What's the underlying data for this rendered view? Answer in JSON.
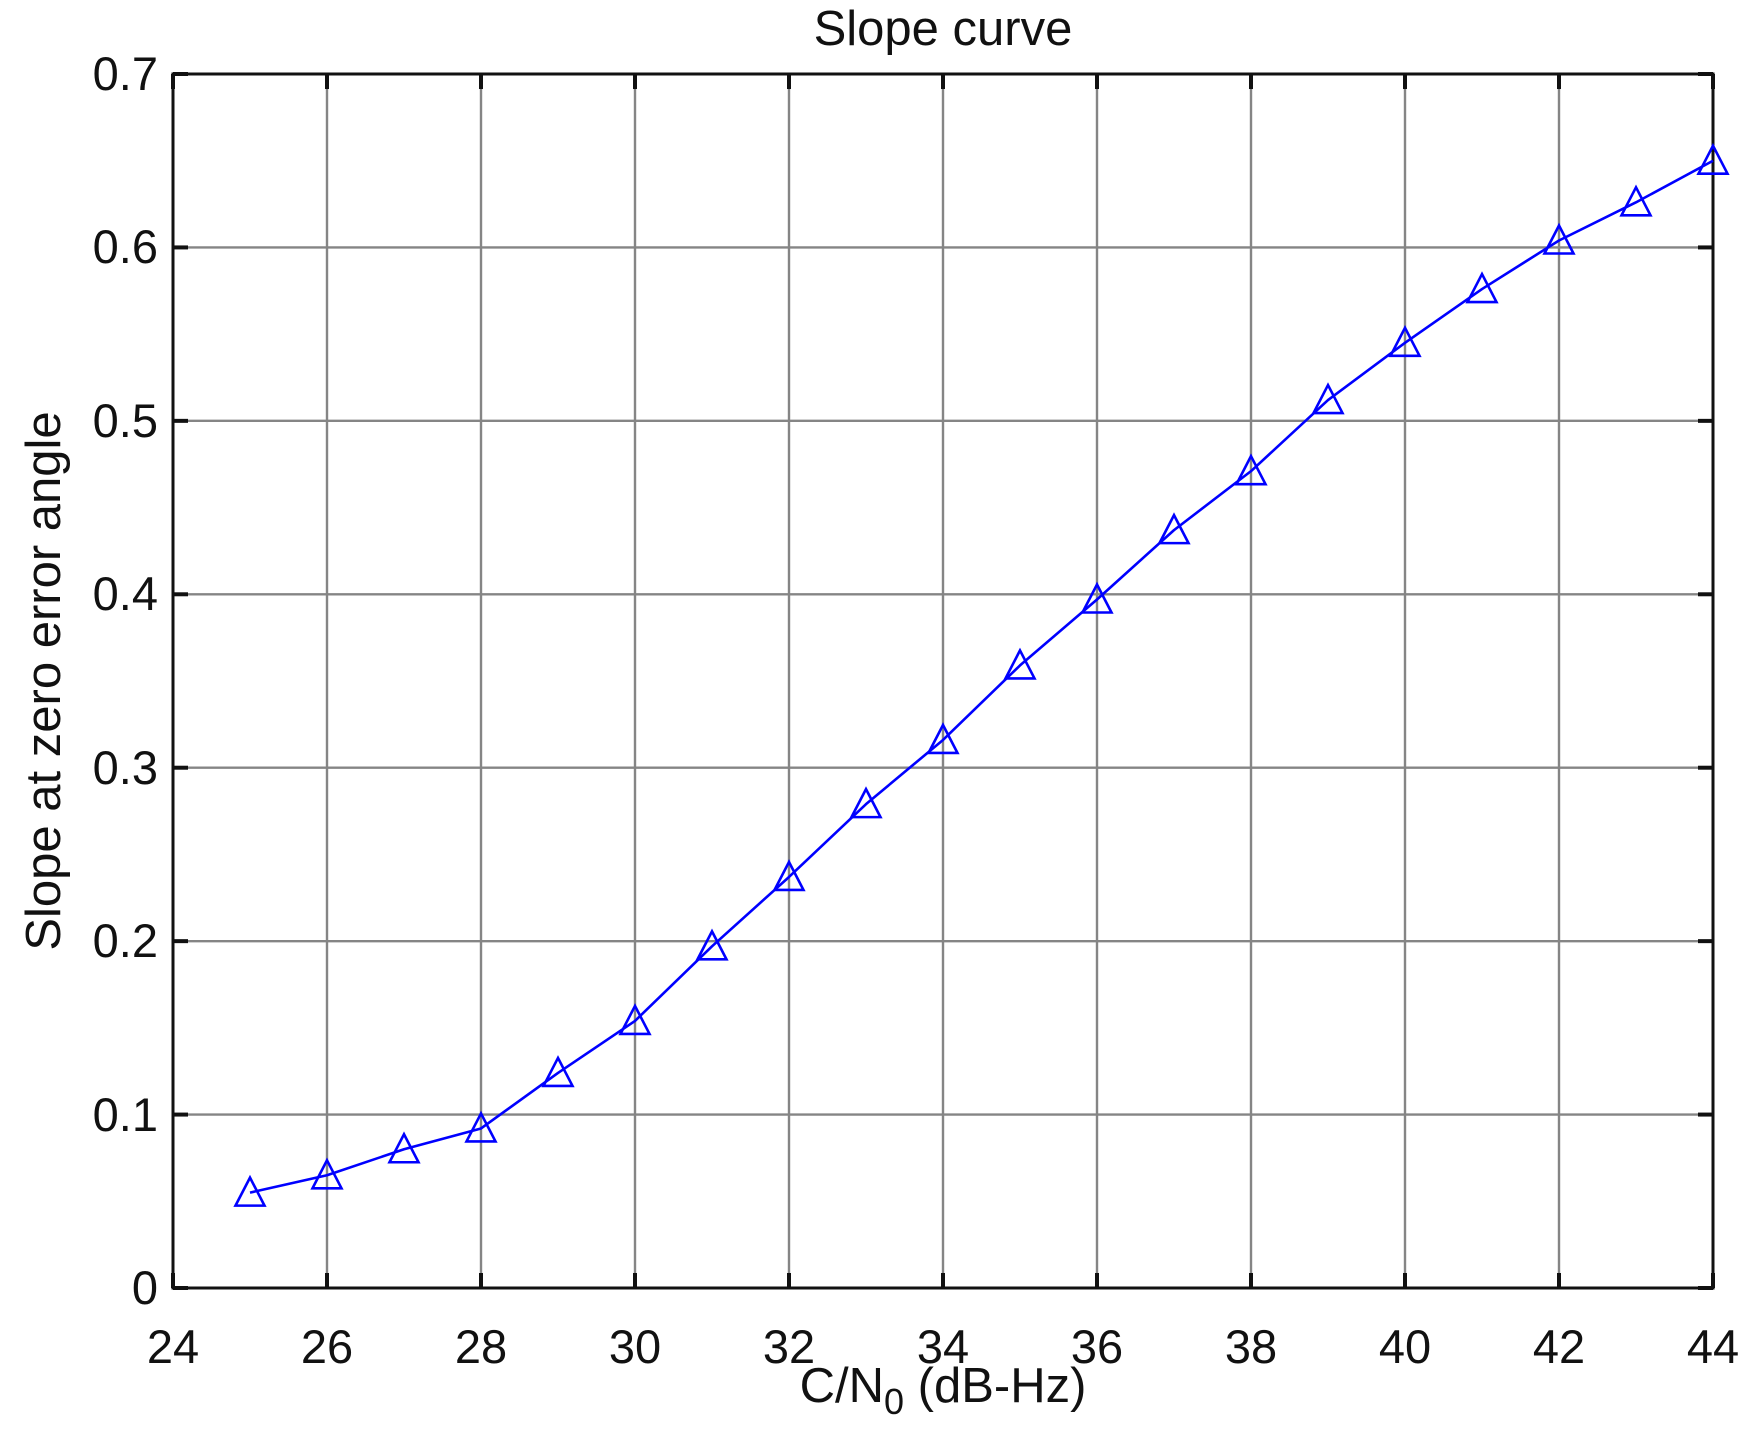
{
  "figure": {
    "background": "#ffffff"
  },
  "chart_data": {
    "type": "line",
    "title": "Slope curve",
    "xlabel_prefix": "C/N",
    "xlabel_subscript": "0",
    "xlabel_suffix": " (dB-Hz)",
    "ylabel": "Slope at zero error angle",
    "x": [
      25,
      26,
      27,
      28,
      29,
      30,
      31,
      32,
      33,
      34,
      35,
      36,
      37,
      38,
      39,
      40,
      41,
      42,
      43,
      44
    ],
    "y": [
      0.055,
      0.065,
      0.08,
      0.092,
      0.124,
      0.154,
      0.197,
      0.237,
      0.279,
      0.316,
      0.359,
      0.397,
      0.437,
      0.471,
      0.512,
      0.545,
      0.576,
      0.604,
      0.626,
      0.65
    ],
    "xlim": [
      24,
      44
    ],
    "ylim": [
      0,
      0.7
    ],
    "xticks": [
      24,
      26,
      28,
      30,
      32,
      34,
      36,
      38,
      40,
      42,
      44
    ],
    "xtick_labels": [
      "24",
      "26",
      "28",
      "30",
      "32",
      "34",
      "36",
      "38",
      "40",
      "42",
      "44"
    ],
    "yticks": [
      0,
      0.1,
      0.2,
      0.3,
      0.4,
      0.5,
      0.6,
      0.7
    ],
    "ytick_labels": [
      "0",
      "0.1",
      "0.2",
      "0.3",
      "0.4",
      "0.5",
      "0.6",
      "0.7"
    ],
    "grid": true,
    "legend_position": "none",
    "line_color": "#0000ff",
    "marker": "triangle-up",
    "marker_color": "#0000ff",
    "grid_color": "#858585",
    "axis_color": "#111111"
  }
}
